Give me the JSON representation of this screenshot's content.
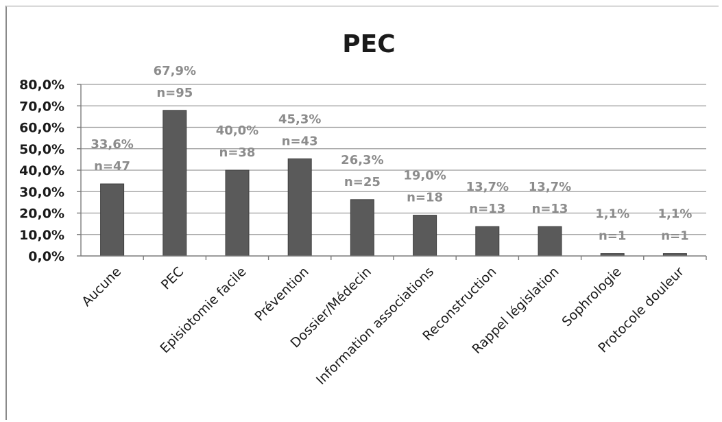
{
  "chart_data": {
    "type": "bar",
    "title": "PEC",
    "categories": [
      "Aucune",
      "PEC",
      "Episiotomie facile",
      "Prévention",
      "Dossier/Médecin",
      "Information associations",
      "Reconstruction",
      "Rappel législation",
      "Sophrologie",
      "Protocole douleur"
    ],
    "values": [
      33.6,
      67.9,
      40.0,
      45.3,
      26.3,
      19.0,
      13.7,
      13.7,
      1.1,
      1.1
    ],
    "value_labels": [
      "33,6%",
      "67,9%",
      "40,0%",
      "45,3%",
      "26,3%",
      "19,0%",
      "13,7%",
      "13,7%",
      "1,1%",
      "1,1%"
    ],
    "count_labels": [
      "n=47",
      "n=95",
      "n=38",
      "n=43",
      "n=25",
      "n=18",
      "n=13",
      "n=13",
      "n=1",
      "n=1"
    ],
    "ylim": [
      0,
      80
    ],
    "yticks": [
      0,
      10,
      20,
      30,
      40,
      50,
      60,
      70,
      80
    ],
    "ytick_labels": [
      "0,0%",
      "10,0%",
      "20,0%",
      "30,0%",
      "40,0%",
      "50,0%",
      "60,0%",
      "70,0%",
      "80,0%"
    ],
    "grid": true,
    "legend": "none",
    "colors": {
      "bar": "#5a5a5a",
      "bar_edge": "#3e3e3e",
      "data_label": "#8c8c8c",
      "grid": "#9a9a9a",
      "text": "#1a1a1a"
    }
  }
}
